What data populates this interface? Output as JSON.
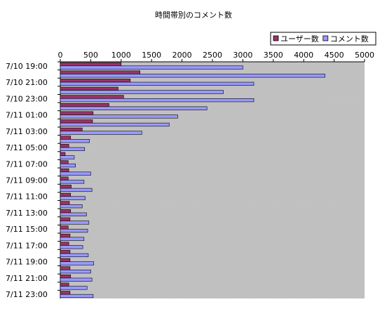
{
  "chart_data": {
    "type": "bar",
    "orientation": "horizontal",
    "title": "時間帯別のコメント数",
    "categories": [
      "7/10 19:00",
      null,
      "7/10 21:00",
      null,
      "7/10 23:00",
      null,
      "7/11 01:00",
      null,
      "7/11 03:00",
      null,
      "7/11 05:00",
      null,
      "7/11 07:00",
      null,
      "7/11 09:00",
      null,
      "7/11 11:00",
      null,
      "7/11 13:00",
      null,
      "7/11 15:00",
      null,
      "7/11 17:00",
      null,
      "7/11 19:00",
      null,
      "7/11 21:00",
      null,
      "7/11 23:00"
    ],
    "series": [
      {
        "name": "ユーザー数",
        "color": "#993366",
        "values": [
          1000,
          1310,
          1150,
          950,
          1040,
          800,
          540,
          530,
          360,
          170,
          140,
          80,
          130,
          140,
          130,
          180,
          170,
          150,
          170,
          160,
          130,
          160,
          140,
          160,
          160,
          160,
          170,
          140,
          160
        ]
      },
      {
        "name": "コメント数",
        "color": "#9999ff",
        "values": [
          3000,
          4350,
          3180,
          2680,
          3180,
          2410,
          1930,
          1790,
          1340,
          480,
          400,
          230,
          250,
          500,
          390,
          520,
          410,
          360,
          430,
          470,
          450,
          390,
          370,
          460,
          550,
          500,
          520,
          440,
          540
        ]
      }
    ],
    "xlim": [
      0,
      5000
    ],
    "xticks": [
      0,
      500,
      1000,
      1500,
      2000,
      2500,
      3000,
      3500,
      4000,
      4500,
      5000
    ],
    "legend": "top-right",
    "grid": false
  }
}
